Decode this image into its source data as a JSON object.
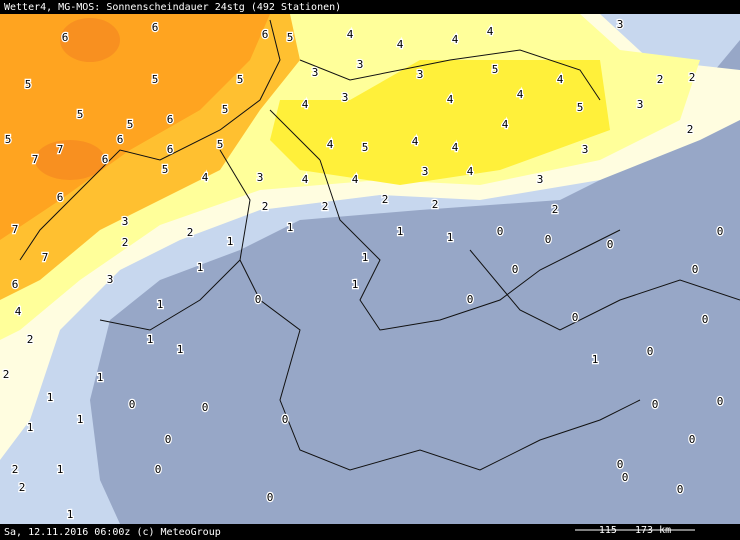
{
  "header": {
    "title": "Wetter4, MG-MOS: Sonnenscheindauer 24stg (492 Stationen)"
  },
  "footer": {
    "date": "Sa, 12.11.2016 06:00z (c) MeteoGroup",
    "scale": "115 - 173 km"
  },
  "stations": [
    6,
    6,
    6,
    5,
    4,
    4,
    4,
    4,
    3,
    5,
    5,
    5,
    3,
    3,
    3,
    5,
    4,
    2,
    2,
    5,
    5,
    6,
    5,
    4,
    3,
    4,
    4,
    5,
    3,
    5,
    7,
    6,
    6,
    5,
    4,
    5,
    4,
    4,
    4,
    3,
    2,
    7,
    6,
    5,
    4,
    3,
    4,
    4,
    3,
    4,
    3,
    7,
    6,
    3,
    2,
    2,
    2,
    2,
    2,
    2,
    0,
    7,
    2,
    1,
    1,
    1,
    1,
    0,
    0,
    0,
    6,
    3,
    1,
    1,
    0,
    0,
    4,
    1,
    0,
    1,
    0,
    0,
    0,
    2,
    1,
    0,
    2,
    1,
    1,
    1,
    1,
    0,
    0,
    0,
    0,
    1,
    1,
    0,
    0,
    0,
    2,
    1,
    0,
    0,
    2,
    1,
    0,
    0,
    0
  ]
}
